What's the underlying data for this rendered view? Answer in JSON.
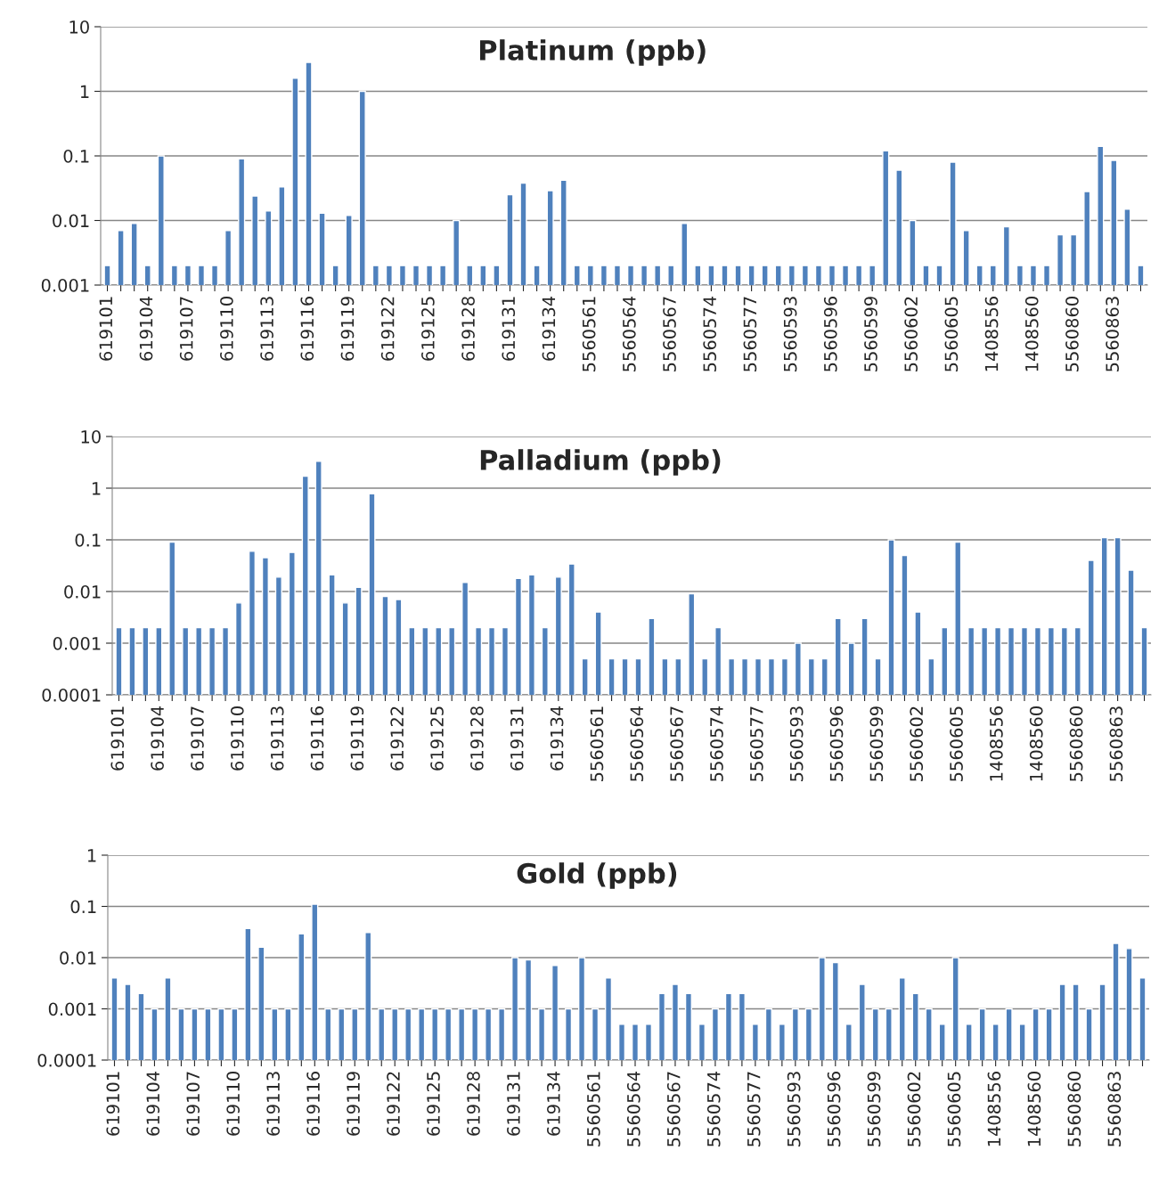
{
  "chart_data": [
    {
      "type": "bar",
      "title": "Platinum (ppb)",
      "log": true,
      "grid": "y",
      "color": "#4f81bd",
      "categories": [
        "619101",
        null,
        null,
        "619104",
        null,
        null,
        "619107",
        null,
        null,
        "619110",
        null,
        null,
        "619113",
        null,
        null,
        "619116",
        null,
        null,
        "619119",
        null,
        null,
        "619122",
        null,
        null,
        "619125",
        null,
        null,
        "619128",
        null,
        null,
        "619131",
        null,
        null,
        "619134",
        null,
        null,
        "5560561",
        null,
        null,
        "5560564",
        null,
        null,
        "5560567",
        null,
        null,
        "5560574",
        null,
        null,
        "5560577",
        null,
        null,
        "5560593",
        null,
        null,
        "5560596",
        null,
        null,
        "5560599",
        null,
        null,
        "5560602",
        null,
        null,
        "5560605",
        null,
        null,
        "1408556",
        null,
        null,
        "1408560",
        null,
        null,
        "5560860",
        null,
        null,
        "5560863",
        null,
        null
      ],
      "values": [
        0.002,
        0.007,
        0.009,
        0.002,
        0.1,
        0.002,
        0.002,
        0.002,
        0.002,
        0.007,
        0.09,
        0.024,
        0.014,
        0.033,
        1.6,
        2.8,
        0.013,
        0.002,
        0.012,
        1.0,
        0.002,
        0.002,
        0.002,
        0.002,
        0.002,
        0.002,
        0.01,
        0.002,
        0.002,
        0.002,
        0.025,
        0.038,
        0.002,
        0.029,
        0.042,
        0.002,
        0.002,
        0.002,
        0.002,
        0.002,
        0.002,
        0.002,
        0.002,
        0.009,
        0.002,
        0.002,
        0.002,
        0.002,
        0.002,
        0.002,
        0.002,
        0.002,
        0.002,
        0.002,
        0.002,
        0.002,
        0.002,
        0.002,
        0.12,
        0.06,
        0.01,
        0.002,
        0.002,
        0.08,
        0.007,
        0.002,
        0.002,
        0.008,
        0.002,
        0.002,
        0.002,
        0.006,
        0.006,
        0.028,
        0.14,
        0.085,
        0.015,
        0.002
      ],
      "ylim": [
        0.001,
        10
      ],
      "yticks": [
        0.001,
        0.01,
        0.1,
        1,
        10
      ]
    },
    {
      "type": "bar",
      "title": "Palladium (ppb)",
      "log": true,
      "grid": "y",
      "color": "#4f81bd",
      "categories": [
        "619101",
        null,
        null,
        "619104",
        null,
        null,
        "619107",
        null,
        null,
        "619110",
        null,
        null,
        "619113",
        null,
        null,
        "619116",
        null,
        null,
        "619119",
        null,
        null,
        "619122",
        null,
        null,
        "619125",
        null,
        null,
        "619128",
        null,
        null,
        "619131",
        null,
        null,
        "619134",
        null,
        null,
        "5560561",
        null,
        null,
        "5560564",
        null,
        null,
        "5560567",
        null,
        null,
        "5560574",
        null,
        null,
        "5560577",
        null,
        null,
        "5560593",
        null,
        null,
        "5560596",
        null,
        null,
        "5560599",
        null,
        null,
        "5560602",
        null,
        null,
        "5560605",
        null,
        null,
        "1408556",
        null,
        null,
        "1408560",
        null,
        null,
        "5560860",
        null,
        null,
        "5560863",
        null,
        null
      ],
      "values": [
        0.002,
        0.002,
        0.002,
        0.002,
        0.09,
        0.002,
        0.002,
        0.002,
        0.002,
        0.006,
        0.06,
        0.045,
        0.019,
        0.057,
        1.7,
        3.3,
        0.021,
        0.006,
        0.012,
        0.78,
        0.008,
        0.007,
        0.002,
        0.002,
        0.002,
        0.002,
        0.015,
        0.002,
        0.002,
        0.002,
        0.018,
        0.021,
        0.002,
        0.019,
        0.034,
        0.0005,
        0.004,
        0.0005,
        0.0005,
        0.0005,
        0.003,
        0.0005,
        0.0005,
        0.009,
        0.0005,
        0.002,
        0.0005,
        0.0005,
        0.0005,
        0.0005,
        0.0005,
        0.001,
        0.0005,
        0.0005,
        0.003,
        0.001,
        0.003,
        0.0005,
        0.1,
        0.05,
        0.004,
        0.0005,
        0.002,
        0.09,
        0.002,
        0.002,
        0.002,
        0.002,
        0.002,
        0.002,
        0.002,
        0.002,
        0.002,
        0.04,
        0.11,
        0.11,
        0.026,
        0.002
      ],
      "ylim": [
        0.0001,
        10
      ],
      "yticks": [
        0.0001,
        0.001,
        0.01,
        0.1,
        1,
        10
      ]
    },
    {
      "type": "bar",
      "title": "Gold (ppb)",
      "log": true,
      "grid": "y",
      "color": "#4f81bd",
      "categories": [
        "619101",
        null,
        null,
        "619104",
        null,
        null,
        "619107",
        null,
        null,
        "619110",
        null,
        null,
        "619113",
        null,
        null,
        "619116",
        null,
        null,
        "619119",
        null,
        null,
        "619122",
        null,
        null,
        "619125",
        null,
        null,
        "619128",
        null,
        null,
        "619131",
        null,
        null,
        "619134",
        null,
        null,
        "5560561",
        null,
        null,
        "5560564",
        null,
        null,
        "5560567",
        null,
        null,
        "5560574",
        null,
        null,
        "5560577",
        null,
        null,
        "5560593",
        null,
        null,
        "5560596",
        null,
        null,
        "5560599",
        null,
        null,
        "5560602",
        null,
        null,
        "5560605",
        null,
        null,
        "1408556",
        null,
        null,
        "1408560",
        null,
        null,
        "5560860",
        null,
        null,
        "5560863",
        null,
        null
      ],
      "values": [
        0.004,
        0.003,
        0.002,
        0.001,
        0.004,
        0.001,
        0.001,
        0.001,
        0.001,
        0.001,
        0.037,
        0.016,
        0.001,
        0.001,
        0.029,
        0.11,
        0.001,
        0.001,
        0.001,
        0.031,
        0.001,
        0.001,
        0.001,
        0.001,
        0.001,
        0.001,
        0.001,
        0.001,
        0.001,
        0.001,
        0.01,
        0.009,
        0.001,
        0.007,
        0.001,
        0.01,
        0.001,
        0.004,
        0.0005,
        0.0005,
        0.0005,
        0.002,
        0.003,
        0.002,
        0.0005,
        0.001,
        0.002,
        0.002,
        0.0005,
        0.001,
        0.0005,
        0.001,
        0.001,
        0.01,
        0.008,
        0.0005,
        0.003,
        0.001,
        0.001,
        0.004,
        0.002,
        0.001,
        0.0005,
        0.01,
        0.0005,
        0.001,
        0.0005,
        0.001,
        0.0005,
        0.001,
        0.001,
        0.003,
        0.003,
        0.001,
        0.003,
        0.019,
        0.015,
        0.004
      ],
      "ylim": [
        0.0001,
        1
      ],
      "yticks": [
        0.0001,
        0.001,
        0.01,
        0.1,
        1
      ]
    }
  ]
}
